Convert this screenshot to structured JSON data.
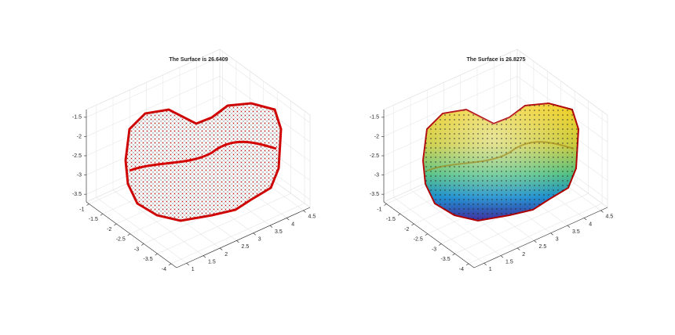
{
  "chart_data": [
    {
      "type": "mesh3d",
      "title": "The Surface is 26.6409",
      "color": "#d40000",
      "face_color": "#ffffff",
      "xlim": [
        0.7,
        4.7
      ],
      "xticks": [
        1,
        1.5,
        2,
        2.5,
        3,
        3.5,
        4,
        4.5
      ],
      "ylim": [
        -4.2,
        -0.9
      ],
      "yticks": [
        -4,
        -3.5,
        -3,
        -2.5,
        -2,
        -1.5,
        -1
      ],
      "zlim": [
        -3.7,
        -1.3
      ],
      "zticks": [
        -3.5,
        -3,
        -2.5,
        -2,
        -1.5
      ],
      "grid": true
    },
    {
      "type": "surface3d",
      "title": "The Surface is 26.8275",
      "color": "#b00000",
      "face_color": "#e0c020",
      "xlim": [
        0.7,
        4.7
      ],
      "xticks": [
        1,
        1.5,
        2,
        2.5,
        3,
        3.5,
        4,
        4.5
      ],
      "ylim": [
        -4.2,
        -0.9
      ],
      "yticks": [
        -4,
        -3.5,
        -3,
        -2.5,
        -2,
        -1.5,
        -1
      ],
      "zlim": [
        -3.7,
        -1.3
      ],
      "zticks": [
        -3.5,
        -3,
        -2.5,
        -2,
        -1.5
      ],
      "grid": true
    }
  ]
}
